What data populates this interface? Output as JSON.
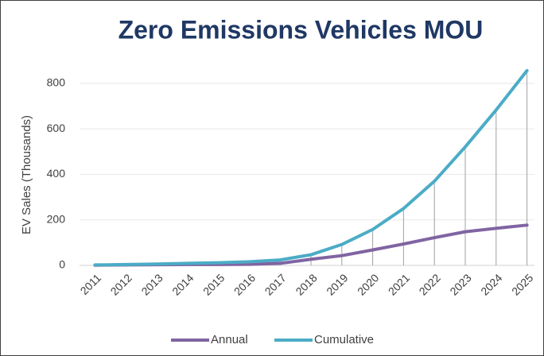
{
  "chart_data": {
    "type": "line",
    "title": "Zero Emissions Vehicles MOU",
    "y_label": "EV Sales (Thousands)",
    "categories": [
      "2011",
      "2012",
      "2013",
      "2014",
      "2015",
      "2016",
      "2017",
      "2018",
      "2019",
      "2020",
      "2021",
      "2022",
      "2023",
      "2024",
      "2025"
    ],
    "series": [
      {
        "name": "Annual",
        "color": "#8064a2",
        "values": [
          1,
          2,
          3,
          4,
          4,
          5,
          9,
          27,
          43,
          68,
          94,
          122,
          148,
          163,
          177
        ]
      },
      {
        "name": "Cumulative",
        "color": "#4bacc6",
        "values": [
          2,
          4,
          6,
          9,
          12,
          16,
          24,
          47,
          92,
          158,
          250,
          370,
          521,
          683,
          856
        ]
      }
    ],
    "ylim": [
      0,
      880
    ],
    "yticks": [
      0,
      200,
      400,
      600,
      800
    ],
    "grid": true,
    "drop_lines": true,
    "legend": "bottom"
  }
}
